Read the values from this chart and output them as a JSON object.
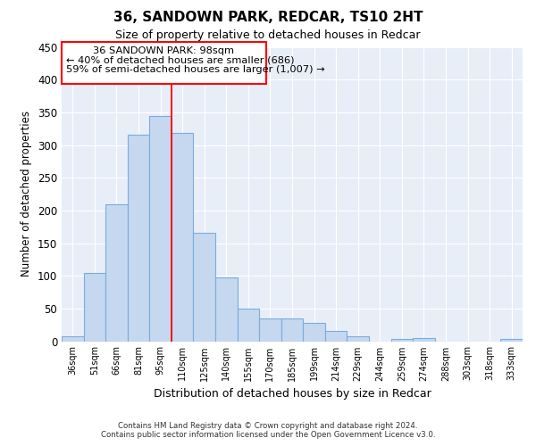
{
  "title": "36, SANDOWN PARK, REDCAR, TS10 2HT",
  "subtitle": "Size of property relative to detached houses in Redcar",
  "xlabel": "Distribution of detached houses by size in Redcar",
  "ylabel": "Number of detached properties",
  "bar_color": "#c5d8f0",
  "bar_edge_color": "#7aaddc",
  "background_color": "#e8eef8",
  "grid_color": "#ffffff",
  "categories": [
    "36sqm",
    "51sqm",
    "66sqm",
    "81sqm",
    "95sqm",
    "110sqm",
    "125sqm",
    "140sqm",
    "155sqm",
    "170sqm",
    "185sqm",
    "199sqm",
    "214sqm",
    "229sqm",
    "244sqm",
    "259sqm",
    "274sqm",
    "288sqm",
    "303sqm",
    "318sqm",
    "333sqm"
  ],
  "values": [
    7,
    105,
    209,
    316,
    345,
    319,
    166,
    97,
    50,
    35,
    35,
    28,
    16,
    8,
    0,
    4,
    5,
    0,
    0,
    0,
    3
  ],
  "ylim": [
    0,
    450
  ],
  "yticks": [
    0,
    50,
    100,
    150,
    200,
    250,
    300,
    350,
    400,
    450
  ],
  "property_line_x": 4.5,
  "annotation_text_line1": "36 SANDOWN PARK: 98sqm",
  "annotation_text_line2": "← 40% of detached houses are smaller (686)",
  "annotation_text_line3": "59% of semi-detached houses are larger (1,007) →",
  "footer_line1": "Contains HM Land Registry data © Crown copyright and database right 2024.",
  "footer_line2": "Contains public sector information licensed under the Open Government Licence v3.0."
}
